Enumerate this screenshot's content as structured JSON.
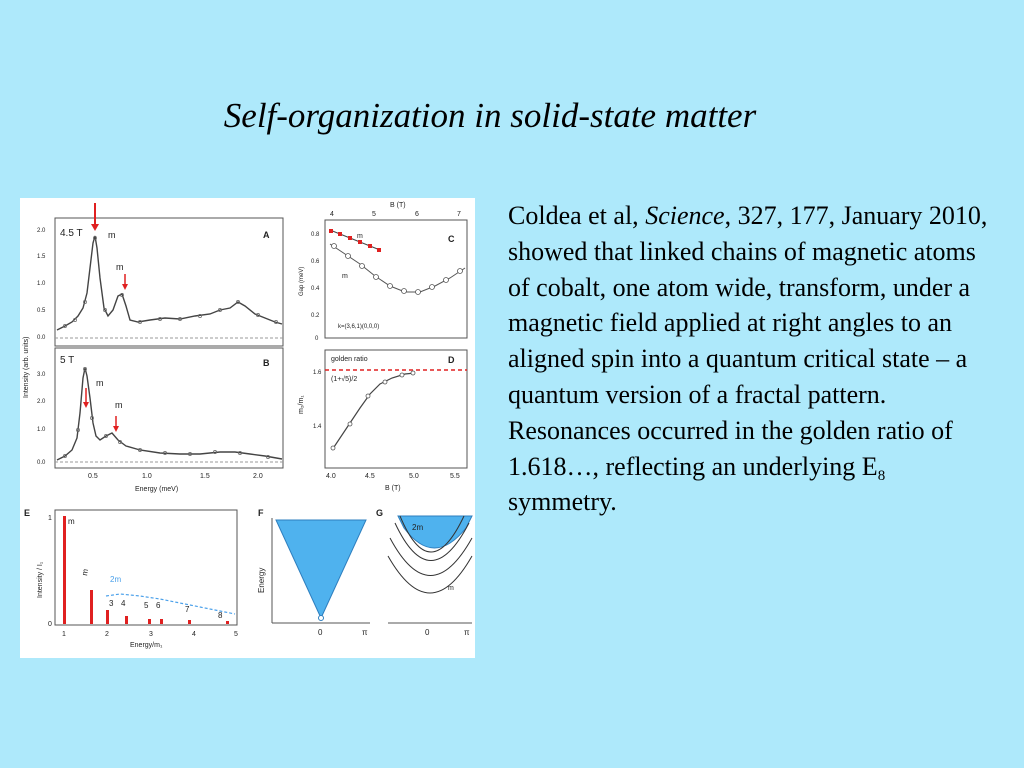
{
  "title": "Self-organization in solid-state matter",
  "body": {
    "part1": "Coldea et al, ",
    "journal": "Science",
    "part2": ", 327, 177, January 2010, showed that linked chains of magnetic atoms of cobalt, one atom wide, transform, under a magnetic field applied at right angles to an aligned spin into a quantum critical state – a quantum version of a fractal pattern. Resonances occurred in the golden ratio of 1.618…, reflecting an underlying E",
    "subscript": "8",
    "part3": " symmetry."
  },
  "figure": {
    "panels": {
      "A": {
        "letter": "A",
        "field": "4.5 T",
        "m1": "m",
        "m2": "m"
      },
      "B": {
        "letter": "B",
        "field": "5 T",
        "m1": "m",
        "m2": "m"
      },
      "C": {
        "letter": "C",
        "top_axis": "B (T)",
        "ylabel": "Gap (meV)",
        "note": "k=(3,6,1)(0,0,0)",
        "m1": "m",
        "m2": "m"
      },
      "D": {
        "letter": "D",
        "golden": "golden ratio",
        "formula": "(1+√5)/2",
        "ylabel": "m₂/m₁",
        "xlabel": "B (T)"
      },
      "E": {
        "letter": "E",
        "ylabel": "Intensity / I₁",
        "xlabel": "Energy/m₁",
        "m1": "m",
        "m2": "m",
        "label_2m1": "2m",
        "peaks": [
          "3",
          "4",
          "5",
          "6",
          "7",
          "8"
        ]
      },
      "F": {
        "letter": "F",
        "ylabel": "Energy",
        "tick0": "0",
        "tick_pi": "π"
      },
      "G": {
        "letter": "G",
        "label_2m1": "2m",
        "m1": "m",
        "tick0": "0",
        "tick_pi": "π"
      }
    },
    "ab_ylabel": "Intensity (arb. units)",
    "ab_xlabel": "Energy (meV)",
    "ab_xticks": [
      "0.5",
      "1.0",
      "1.5",
      "2.0"
    ],
    "a_yticks": [
      "2.0",
      "1.5",
      "1.0",
      "0.5",
      "0.0"
    ],
    "b_yticks": [
      "3.0",
      "2.0",
      "1.0",
      "0.0"
    ],
    "c_topticks": [
      "4",
      "5",
      "6",
      "7"
    ],
    "c_yticks": [
      "0.8",
      "0.6",
      "0.4",
      "0.2",
      "0"
    ],
    "d_yticks": [
      "1.6",
      "1.4"
    ],
    "d_xticks": [
      "4.0",
      "4.5",
      "5.0",
      "5.5"
    ],
    "e_xticks": [
      "1",
      "2",
      "3",
      "4",
      "5"
    ],
    "e_yticks": [
      "1",
      "0"
    ]
  }
}
